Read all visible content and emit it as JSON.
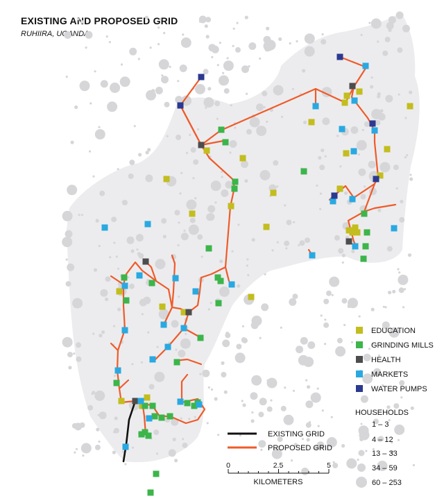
{
  "title": "EXISTING AND PROPOSED GRID",
  "subtitle": "RUHIIRA, UGANDA",
  "colors": {
    "region": "#ececee",
    "households": "#d6d6d9",
    "proposed_grid": "#f05a28",
    "existing_grid": "#111111",
    "education": "#c3bd1e",
    "grinding_mills": "#3cb54a",
    "health": "#4d4d4d",
    "markets": "#29a9e1",
    "water_pumps": "#2b3990"
  },
  "legend_facilities": [
    {
      "key": "education",
      "label": "EDUCATION"
    },
    {
      "key": "grinding_mills",
      "label": "GRINDING MILLS"
    },
    {
      "key": "health",
      "label": "HEALTH"
    },
    {
      "key": "markets",
      "label": "MARKETS"
    },
    {
      "key": "water_pumps",
      "label": "WATER PUMPS"
    }
  ],
  "legend_lines": [
    {
      "key": "existing_grid",
      "label": "EXISTING GRID"
    },
    {
      "key": "proposed_grid",
      "label": "PROPOSED GRID"
    }
  ],
  "households_legend": {
    "title": "HOUSEHOLDS",
    "classes": [
      "1 – 3",
      "4 – 12",
      "13 – 33",
      "34 – 59",
      "60 – 253"
    ]
  },
  "scale_bar": {
    "ticks": [
      "0",
      "2.5",
      "5"
    ],
    "unit": "KILOMETERS"
  }
}
